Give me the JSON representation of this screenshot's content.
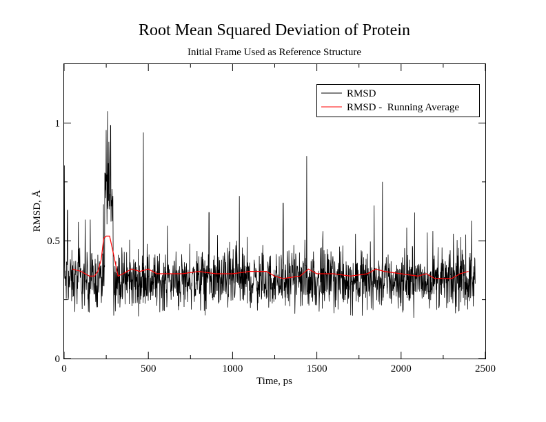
{
  "chart_data": {
    "type": "line",
    "title": "Root Mean Squared Deviation of Protein",
    "subtitle": "Initial Frame Used as Reference Structure",
    "xlabel": "Time, ps",
    "ylabel": "RMSD, Å",
    "xlim": [
      0,
      2500
    ],
    "ylim": [
      0,
      1.25
    ],
    "x_ticks": [
      "0",
      "500",
      "1000",
      "1500",
      "2000",
      "2500"
    ],
    "y_ticks": [
      "0",
      "0.5",
      "1"
    ],
    "grid": false,
    "legend_position": "top-right",
    "series": [
      {
        "name": "RMSD",
        "color": "#000000",
        "x_start": 0,
        "x_end": 2440,
        "baseline": 0.33,
        "noise_amplitude": 0.09,
        "spikes": [
          {
            "x": 2,
            "y": 0.82
          },
          {
            "x": 20,
            "y": 0.63
          },
          {
            "x": 85,
            "y": 0.58
          },
          {
            "x": 125,
            "y": 0.59
          },
          {
            "x": 155,
            "y": 0.59
          },
          {
            "x": 250,
            "y": 0.97
          },
          {
            "x": 258,
            "y": 1.05
          },
          {
            "x": 266,
            "y": 0.92
          },
          {
            "x": 276,
            "y": 0.99
          },
          {
            "x": 285,
            "y": 0.72
          },
          {
            "x": 470,
            "y": 0.96
          },
          {
            "x": 860,
            "y": 0.62
          },
          {
            "x": 1040,
            "y": 0.69
          },
          {
            "x": 1300,
            "y": 0.66
          },
          {
            "x": 1440,
            "y": 0.86
          },
          {
            "x": 1840,
            "y": 0.65
          },
          {
            "x": 1890,
            "y": 0.75
          },
          {
            "x": 2080,
            "y": 0.62
          }
        ]
      },
      {
        "name": "RMSD -  Running Average",
        "color": "#ff0000",
        "x": [
          50,
          100,
          150,
          180,
          200,
          220,
          235,
          250,
          270,
          285,
          300,
          320,
          350,
          400,
          450,
          500,
          550,
          600,
          700,
          800,
          900,
          1000,
          1100,
          1200,
          1250,
          1300,
          1400,
          1450,
          1500,
          1600,
          1700,
          1800,
          1850,
          1900,
          2000,
          2100,
          2150,
          2200,
          2300,
          2350,
          2400
        ],
        "y": [
          0.38,
          0.37,
          0.35,
          0.35,
          0.37,
          0.42,
          0.51,
          0.52,
          0.52,
          0.47,
          0.42,
          0.35,
          0.36,
          0.38,
          0.37,
          0.38,
          0.36,
          0.36,
          0.36,
          0.37,
          0.36,
          0.36,
          0.37,
          0.37,
          0.35,
          0.34,
          0.35,
          0.38,
          0.36,
          0.36,
          0.35,
          0.36,
          0.38,
          0.37,
          0.36,
          0.35,
          0.36,
          0.34,
          0.34,
          0.36,
          0.37
        ]
      }
    ]
  }
}
